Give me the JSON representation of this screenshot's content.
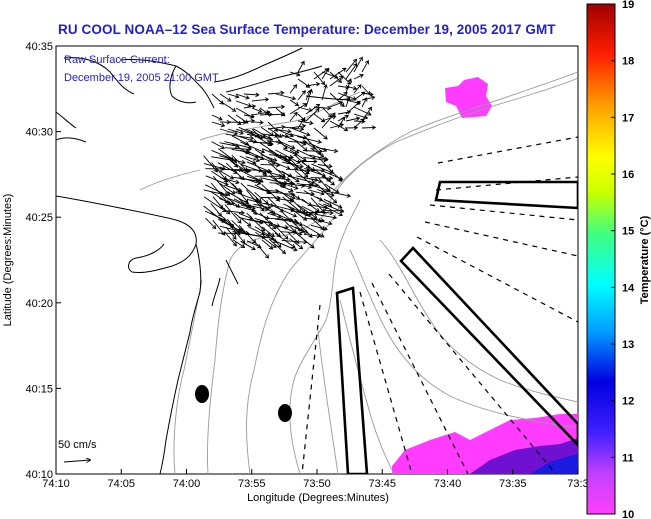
{
  "title": "RU COOL   NOAA–12  Sea Surface Temperature:  December 19, 2005 2017 GMT",
  "current_label_1": "Raw Surface Current:",
  "current_label_2": "December 19, 2005 21:00 GMT",
  "scale_label": "50 cm/s",
  "x_axis": {
    "title": "Longitude (Degrees:Minutes)",
    "ticks": [
      "74:10",
      "74:05",
      "74:00",
      "73:55",
      "73:50",
      "73:45",
      "73:40",
      "73:35",
      "73:3"
    ]
  },
  "y_axis": {
    "title": "Latitude (Degrees:Minutes)",
    "ticks": [
      "40:35",
      "40:30",
      "40:25",
      "40:20",
      "40:15",
      "40:10"
    ]
  },
  "colorbar": {
    "title": "Temperature (°C)",
    "ticks": [
      "19",
      "18",
      "17",
      "16",
      "15",
      "14",
      "13",
      "12",
      "11",
      "10"
    ],
    "min": 10,
    "max": 19
  }
}
